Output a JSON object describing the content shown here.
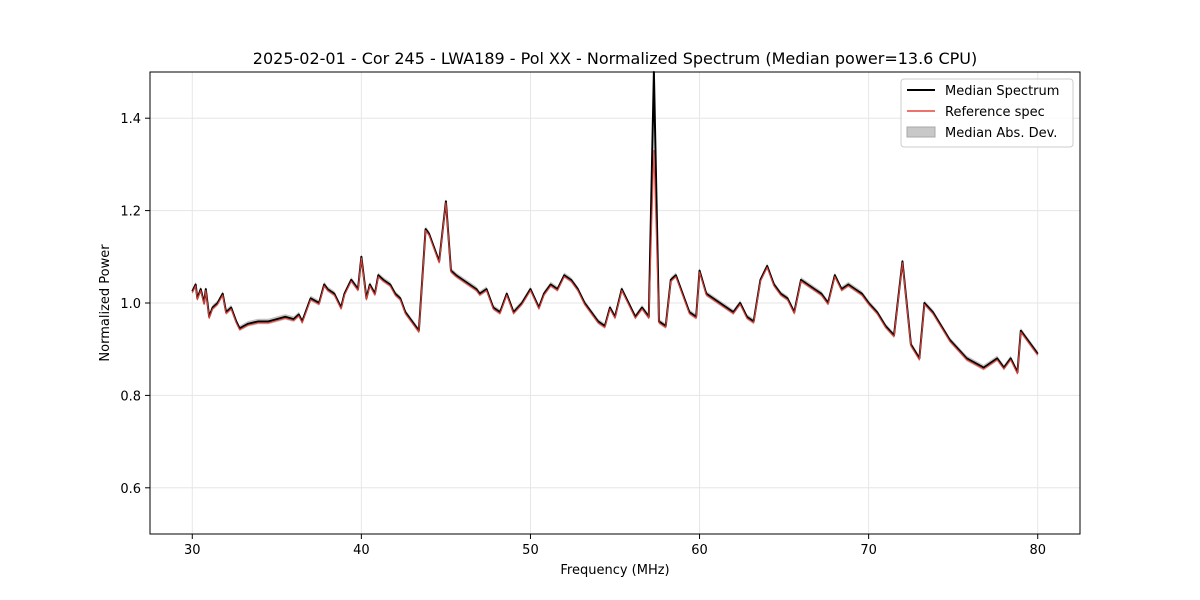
{
  "chart_data": {
    "type": "line",
    "title": "2025-02-01 - Cor 245 - LWA189 - Pol XX - Normalized Spectrum (Median power=13.6 CPU)",
    "xlabel": "Frequency (MHz)",
    "ylabel": "Normalized Power",
    "xlim": [
      27.5,
      82.5
    ],
    "ylim": [
      0.5,
      1.5
    ],
    "xticks": [
      30,
      40,
      50,
      60,
      70,
      80
    ],
    "yticks": [
      0.6,
      0.8,
      1.0,
      1.2,
      1.4
    ],
    "xtick_labels": [
      "30",
      "40",
      "50",
      "60",
      "70",
      "80"
    ],
    "ytick_labels": [
      "0.6",
      "0.8",
      "1.0",
      "1.2",
      "1.4"
    ],
    "grid": true,
    "legend": {
      "location": "top-right",
      "entries": [
        "Median Spectrum",
        "Reference spec",
        "Median Abs. Dev."
      ]
    },
    "colors": {
      "median": "#000000",
      "reference": "#e8453c",
      "mad": "#bdbdbd"
    },
    "x": [
      30.0,
      30.2,
      30.3,
      30.5,
      30.7,
      30.8,
      31.0,
      31.2,
      31.5,
      31.8,
      32.0,
      32.3,
      32.6,
      32.8,
      33.3,
      33.9,
      34.5,
      35.0,
      35.5,
      36.0,
      36.3,
      36.5,
      37.0,
      37.5,
      37.8,
      38.0,
      38.4,
      38.8,
      39.0,
      39.4,
      39.8,
      40.0,
      40.3,
      40.5,
      40.8,
      41.0,
      41.3,
      41.7,
      42.0,
      42.3,
      42.6,
      43.0,
      43.4,
      43.8,
      44.0,
      44.3,
      44.6,
      45.0,
      45.3,
      45.6,
      46.0,
      46.4,
      46.8,
      47.0,
      47.4,
      47.8,
      48.2,
      48.6,
      49.0,
      49.5,
      50.0,
      50.5,
      50.8,
      51.2,
      51.6,
      52.0,
      52.4,
      52.8,
      53.2,
      53.6,
      54.0,
      54.4,
      54.7,
      55.0,
      55.4,
      55.8,
      56.2,
      56.6,
      57.0,
      57.3,
      57.6,
      58.0,
      58.3,
      58.6,
      59.0,
      59.4,
      59.8,
      60.0,
      60.4,
      60.8,
      61.2,
      61.6,
      62.0,
      62.4,
      62.8,
      63.2,
      63.6,
      64.0,
      64.4,
      64.8,
      65.2,
      65.6,
      66.0,
      66.4,
      66.8,
      67.2,
      67.6,
      68.0,
      68.4,
      68.8,
      69.2,
      69.6,
      70.0,
      70.5,
      71.0,
      71.5,
      72.0,
      72.5,
      73.0,
      73.3,
      73.8,
      74.3,
      74.8,
      75.3,
      75.8,
      76.3,
      76.8,
      77.2,
      77.6,
      78.0,
      78.4,
      78.8,
      79.0,
      79.4,
      79.8,
      80.0
    ],
    "median": [
      1.025,
      1.04,
      1.01,
      1.03,
      1.0,
      1.03,
      0.97,
      0.99,
      1.0,
      1.02,
      0.98,
      0.99,
      0.96,
      0.945,
      0.955,
      0.96,
      0.96,
      0.965,
      0.97,
      0.965,
      0.975,
      0.96,
      1.01,
      1.0,
      1.04,
      1.03,
      1.02,
      0.99,
      1.02,
      1.05,
      1.03,
      1.1,
      1.01,
      1.04,
      1.02,
      1.06,
      1.05,
      1.04,
      1.02,
      1.01,
      0.98,
      0.96,
      0.94,
      1.16,
      1.15,
      1.12,
      1.09,
      1.22,
      1.07,
      1.06,
      1.05,
      1.04,
      1.03,
      1.02,
      1.03,
      0.99,
      0.98,
      1.02,
      0.98,
      1.0,
      1.03,
      0.99,
      1.02,
      1.04,
      1.03,
      1.06,
      1.05,
      1.03,
      1.0,
      0.98,
      0.96,
      0.95,
      0.99,
      0.97,
      1.03,
      1.0,
      0.97,
      0.99,
      0.97,
      1.5,
      0.96,
      0.95,
      1.05,
      1.06,
      1.02,
      0.98,
      0.97,
      1.07,
      1.02,
      1.01,
      1.0,
      0.99,
      0.98,
      1.0,
      0.97,
      0.96,
      1.05,
      1.08,
      1.04,
      1.02,
      1.01,
      0.98,
      1.05,
      1.04,
      1.03,
      1.02,
      1.0,
      1.06,
      1.03,
      1.04,
      1.03,
      1.02,
      1.0,
      0.98,
      0.95,
      0.93,
      1.09,
      0.91,
      0.88,
      1.0,
      0.98,
      0.95,
      0.92,
      0.9,
      0.88,
      0.87,
      0.86,
      0.87,
      0.88,
      0.86,
      0.88,
      0.85,
      0.94,
      0.92,
      0.9,
      0.89
    ]
  }
}
